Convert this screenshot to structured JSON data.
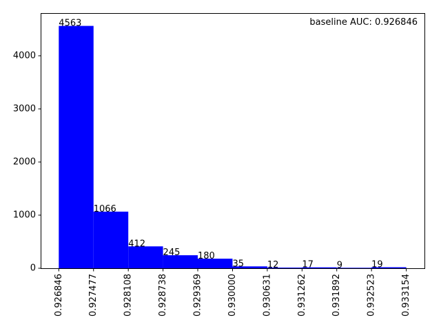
{
  "chart_data": {
    "type": "bar",
    "bin_edges": [
      "0.926846",
      "0.927477",
      "0.928108",
      "0.928738",
      "0.929369",
      "0.930000",
      "0.930631",
      "0.931262",
      "0.931892",
      "0.932523",
      "0.933154"
    ],
    "values": [
      4563,
      1066,
      412,
      245,
      180,
      35,
      12,
      17,
      9,
      19
    ],
    "annotation": "baseline AUC: 0.926846",
    "y_ticks": [
      "0",
      "1000",
      "2000",
      "3000",
      "4000"
    ],
    "ylim": [
      0,
      4791
    ],
    "bar_color": "#0000ff",
    "grid": false
  }
}
